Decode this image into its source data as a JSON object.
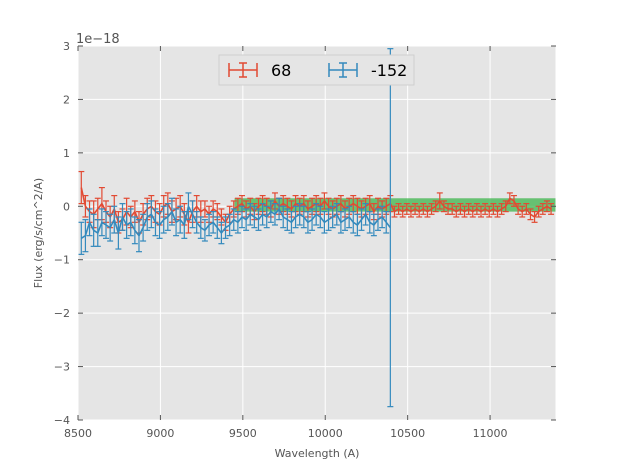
{
  "chart_data": {
    "type": "errorbar-line",
    "title": "",
    "xlabel": "Wavelength (A)",
    "ylabel": "Flux (erg/s/cm^2/A)",
    "y_offset_label": "1e−18",
    "xlim": [
      8500,
      11400
    ],
    "ylim": [
      -4,
      3
    ],
    "xticks": [
      8500,
      9000,
      9500,
      10000,
      10500,
      11000
    ],
    "xtick_labels": [
      "8500",
      "9000",
      "9500",
      "10000",
      "10500",
      "11000"
    ],
    "yticks": [
      -4,
      -3,
      -2,
      -1,
      0,
      1,
      2,
      3
    ],
    "ytick_labels": [
      "−4",
      "−3",
      "−2",
      "−1",
      "0",
      "1",
      "2",
      "3"
    ],
    "grid": true,
    "background": "#e5e5e5",
    "legend_position": "top-center",
    "band": {
      "x_start": 9450,
      "x_end": 11400,
      "y_low": -0.1,
      "y_high": 0.15,
      "color": "#3cb44b"
    },
    "series": [
      {
        "name": "68",
        "color": "#e24a33",
        "x": [
          8520,
          8545,
          8570,
          8595,
          8620,
          8645,
          8670,
          8695,
          8720,
          8745,
          8770,
          8795,
          8820,
          8845,
          8870,
          8895,
          8920,
          8945,
          8970,
          8995,
          9020,
          9045,
          9070,
          9095,
          9120,
          9145,
          9170,
          9195,
          9220,
          9245,
          9270,
          9295,
          9320,
          9345,
          9370,
          9395,
          9420,
          9445,
          9470,
          9495,
          9520,
          9545,
          9570,
          9595,
          9620,
          9645,
          9670,
          9695,
          9720,
          9745,
          9770,
          9795,
          9820,
          9845,
          9870,
          9895,
          9920,
          9945,
          9970,
          9995,
          10020,
          10045,
          10070,
          10095,
          10120,
          10145,
          10170,
          10195,
          10220,
          10245,
          10270,
          10295,
          10320,
          10345,
          10370,
          10395,
          10420,
          10445,
          10470,
          10495,
          10520,
          10545,
          10570,
          10595,
          10620,
          10645,
          10670,
          10695,
          10720,
          10745,
          10770,
          10795,
          10820,
          10845,
          10870,
          10895,
          10920,
          10945,
          10970,
          10995,
          11020,
          11045,
          11070,
          11095,
          11120,
          11145,
          11170,
          11195,
          11220,
          11245,
          11270,
          11295,
          11320,
          11345,
          11370
        ],
        "y": [
          0.35,
          0.0,
          -0.1,
          -0.15,
          -0.05,
          0.05,
          -0.1,
          -0.2,
          -0.05,
          -0.3,
          -0.25,
          -0.1,
          -0.2,
          -0.1,
          -0.3,
          -0.15,
          -0.05,
          0.0,
          -0.1,
          -0.15,
          0.0,
          0.05,
          -0.1,
          -0.05,
          0.0,
          -0.15,
          -0.3,
          -0.1,
          0.0,
          -0.1,
          -0.05,
          -0.15,
          -0.05,
          -0.1,
          -0.2,
          -0.3,
          -0.15,
          -0.05,
          0.0,
          0.05,
          -0.05,
          0.0,
          -0.1,
          0.0,
          0.05,
          0.0,
          -0.05,
          0.1,
          0.0,
          0.05,
          0.0,
          -0.05,
          0.05,
          0.0,
          0.05,
          -0.05,
          0.0,
          0.05,
          0.0,
          0.1,
          0.0,
          -0.05,
          0.0,
          0.05,
          -0.05,
          0.0,
          0.05,
          0.0,
          -0.05,
          0.0,
          0.05,
          -0.1,
          0.0,
          -0.05,
          0.0,
          0.05,
          -0.1,
          -0.05,
          -0.1,
          -0.05,
          -0.1,
          -0.05,
          -0.1,
          -0.05,
          -0.1,
          -0.05,
          0.0,
          0.1,
          0.0,
          -0.05,
          -0.05,
          -0.1,
          -0.05,
          -0.1,
          -0.05,
          -0.1,
          -0.05,
          -0.1,
          -0.05,
          -0.1,
          -0.05,
          -0.1,
          -0.05,
          0.0,
          0.15,
          0.1,
          -0.05,
          -0.1,
          -0.05,
          -0.15,
          -0.2,
          -0.1,
          -0.05,
          0.0,
          -0.05
        ],
        "err": [
          0.3,
          0.2,
          0.2,
          0.25,
          0.2,
          0.3,
          0.2,
          0.2,
          0.25,
          0.2,
          0.2,
          0.25,
          0.2,
          0.2,
          0.2,
          0.2,
          0.2,
          0.2,
          0.2,
          0.2,
          0.2,
          0.2,
          0.2,
          0.2,
          0.2,
          0.2,
          0.2,
          0.2,
          0.2,
          0.2,
          0.15,
          0.15,
          0.15,
          0.15,
          0.15,
          0.15,
          0.15,
          0.15,
          0.15,
          0.15,
          0.15,
          0.15,
          0.15,
          0.15,
          0.15,
          0.15,
          0.15,
          0.15,
          0.15,
          0.15,
          0.15,
          0.15,
          0.15,
          0.15,
          0.15,
          0.15,
          0.15,
          0.15,
          0.15,
          0.15,
          0.15,
          0.15,
          0.15,
          0.15,
          0.15,
          0.15,
          0.15,
          0.15,
          0.15,
          0.15,
          0.15,
          0.15,
          0.15,
          0.15,
          0.15,
          0.15,
          0.1,
          0.1,
          0.1,
          0.1,
          0.1,
          0.1,
          0.1,
          0.1,
          0.1,
          0.1,
          0.1,
          0.15,
          0.1,
          0.1,
          0.1,
          0.1,
          0.1,
          0.1,
          0.1,
          0.1,
          0.1,
          0.1,
          0.1,
          0.1,
          0.1,
          0.1,
          0.1,
          0.1,
          0.1,
          0.1,
          0.1,
          0.1,
          0.1,
          0.1,
          0.1,
          0.1,
          0.1,
          0.1,
          0.1
        ]
      },
      {
        "name": "-152",
        "color": "#348abd",
        "x": [
          8520,
          8545,
          8570,
          8595,
          8620,
          8645,
          8670,
          8695,
          8720,
          8745,
          8770,
          8795,
          8820,
          8845,
          8870,
          8895,
          8920,
          8945,
          8970,
          8995,
          9020,
          9045,
          9070,
          9095,
          9120,
          9145,
          9170,
          9195,
          9220,
          9245,
          9270,
          9295,
          9320,
          9345,
          9370,
          9395,
          9420,
          9445,
          9470,
          9495,
          9520,
          9545,
          9570,
          9595,
          9620,
          9645,
          9670,
          9695,
          9720,
          9745,
          9770,
          9795,
          9820,
          9845,
          9870,
          9895,
          9920,
          9945,
          9970,
          9995,
          10020,
          10045,
          10070,
          10095,
          10120,
          10145,
          10170,
          10195,
          10220,
          10245,
          10270,
          10295,
          10320,
          10345,
          10370,
          10395
        ],
        "y": [
          -0.6,
          -0.55,
          -0.3,
          -0.45,
          -0.5,
          -0.3,
          -0.35,
          -0.4,
          -0.25,
          -0.5,
          -0.2,
          -0.35,
          -0.3,
          -0.45,
          -0.55,
          -0.4,
          -0.2,
          -0.15,
          -0.3,
          -0.35,
          -0.25,
          -0.2,
          -0.1,
          -0.3,
          -0.25,
          -0.35,
          0.0,
          -0.15,
          -0.3,
          -0.4,
          -0.45,
          -0.35,
          -0.3,
          -0.4,
          -0.5,
          -0.4,
          -0.35,
          -0.25,
          -0.3,
          -0.2,
          -0.25,
          -0.15,
          -0.2,
          -0.25,
          -0.15,
          -0.2,
          -0.1,
          -0.15,
          -0.05,
          -0.2,
          -0.25,
          -0.3,
          -0.2,
          -0.15,
          -0.2,
          -0.3,
          -0.25,
          -0.15,
          -0.2,
          -0.3,
          -0.25,
          -0.2,
          -0.15,
          -0.3,
          -0.25,
          -0.2,
          -0.3,
          -0.35,
          -0.25,
          -0.15,
          -0.3,
          -0.35,
          -0.25,
          -0.2,
          -0.3,
          -0.4
        ],
        "err": [
          0.3,
          0.3,
          0.25,
          0.3,
          0.25,
          0.25,
          0.25,
          0.25,
          0.25,
          0.3,
          0.25,
          0.25,
          0.25,
          0.25,
          0.3,
          0.25,
          0.25,
          0.25,
          0.25,
          0.25,
          0.25,
          0.25,
          0.25,
          0.25,
          0.25,
          0.25,
          0.25,
          0.25,
          0.2,
          0.2,
          0.2,
          0.2,
          0.2,
          0.2,
          0.2,
          0.2,
          0.2,
          0.2,
          0.2,
          0.2,
          0.2,
          0.2,
          0.2,
          0.2,
          0.2,
          0.2,
          0.2,
          0.2,
          0.2,
          0.2,
          0.2,
          0.2,
          0.2,
          0.2,
          0.2,
          0.2,
          0.2,
          0.2,
          0.2,
          0.2,
          0.2,
          0.2,
          0.2,
          0.2,
          0.2,
          0.2,
          0.2,
          0.2,
          0.2,
          0.2,
          0.2,
          0.2,
          0.2,
          0.2,
          0.2,
          3.35
        ]
      }
    ]
  }
}
